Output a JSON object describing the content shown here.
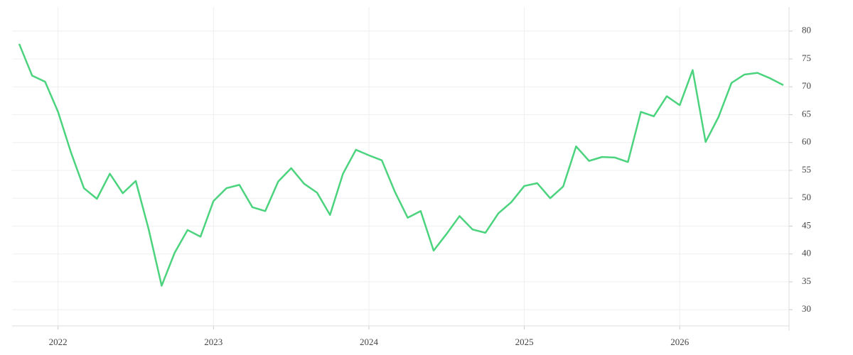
{
  "chart_data": {
    "type": "line",
    "categories": [
      null,
      null,
      null,
      "2022",
      null,
      null,
      null,
      null,
      null,
      null,
      null,
      null,
      null,
      null,
      null,
      "2023",
      null,
      null,
      null,
      null,
      null,
      null,
      null,
      null,
      null,
      null,
      null,
      "2024",
      null,
      null,
      null,
      null,
      null,
      null,
      null,
      null,
      null,
      null,
      null,
      "2025",
      null,
      null,
      null,
      null,
      null,
      null,
      null,
      null,
      null,
      null,
      null,
      "2026",
      null,
      null,
      null,
      null,
      null,
      null,
      null,
      null
    ],
    "series": [
      {
        "color": "#4cd37e",
        "values": [
          77.7,
          72.0,
          70.9,
          65.5,
          58.2,
          51.8,
          49.9,
          54.4,
          50.9,
          53.1,
          44.4,
          34.3,
          40.2,
          44.3,
          43.1,
          49.5,
          51.8,
          52.4,
          48.4,
          47.7,
          53.0,
          55.4,
          52.6,
          51.0,
          47.0,
          54.4,
          58.7,
          57.7,
          56.8,
          51.2,
          46.5,
          47.7,
          40.6,
          43.6,
          46.8,
          44.4,
          43.8,
          47.3,
          49.3,
          52.2,
          52.7,
          50.0,
          52.1,
          59.3,
          56.7,
          57.4,
          57.3,
          56.5,
          65.5,
          64.7,
          68.3,
          66.7,
          73.0,
          60.1,
          64.6,
          70.7,
          72.2,
          72.5,
          71.5,
          70.3
        ]
      }
    ],
    "ylim": [
      26.2,
      84.3
    ],
    "yticks": [
      30,
      35,
      40,
      45,
      50,
      55,
      60,
      65,
      70,
      75,
      80
    ],
    "grid": true,
    "y_axis_side": "right"
  }
}
